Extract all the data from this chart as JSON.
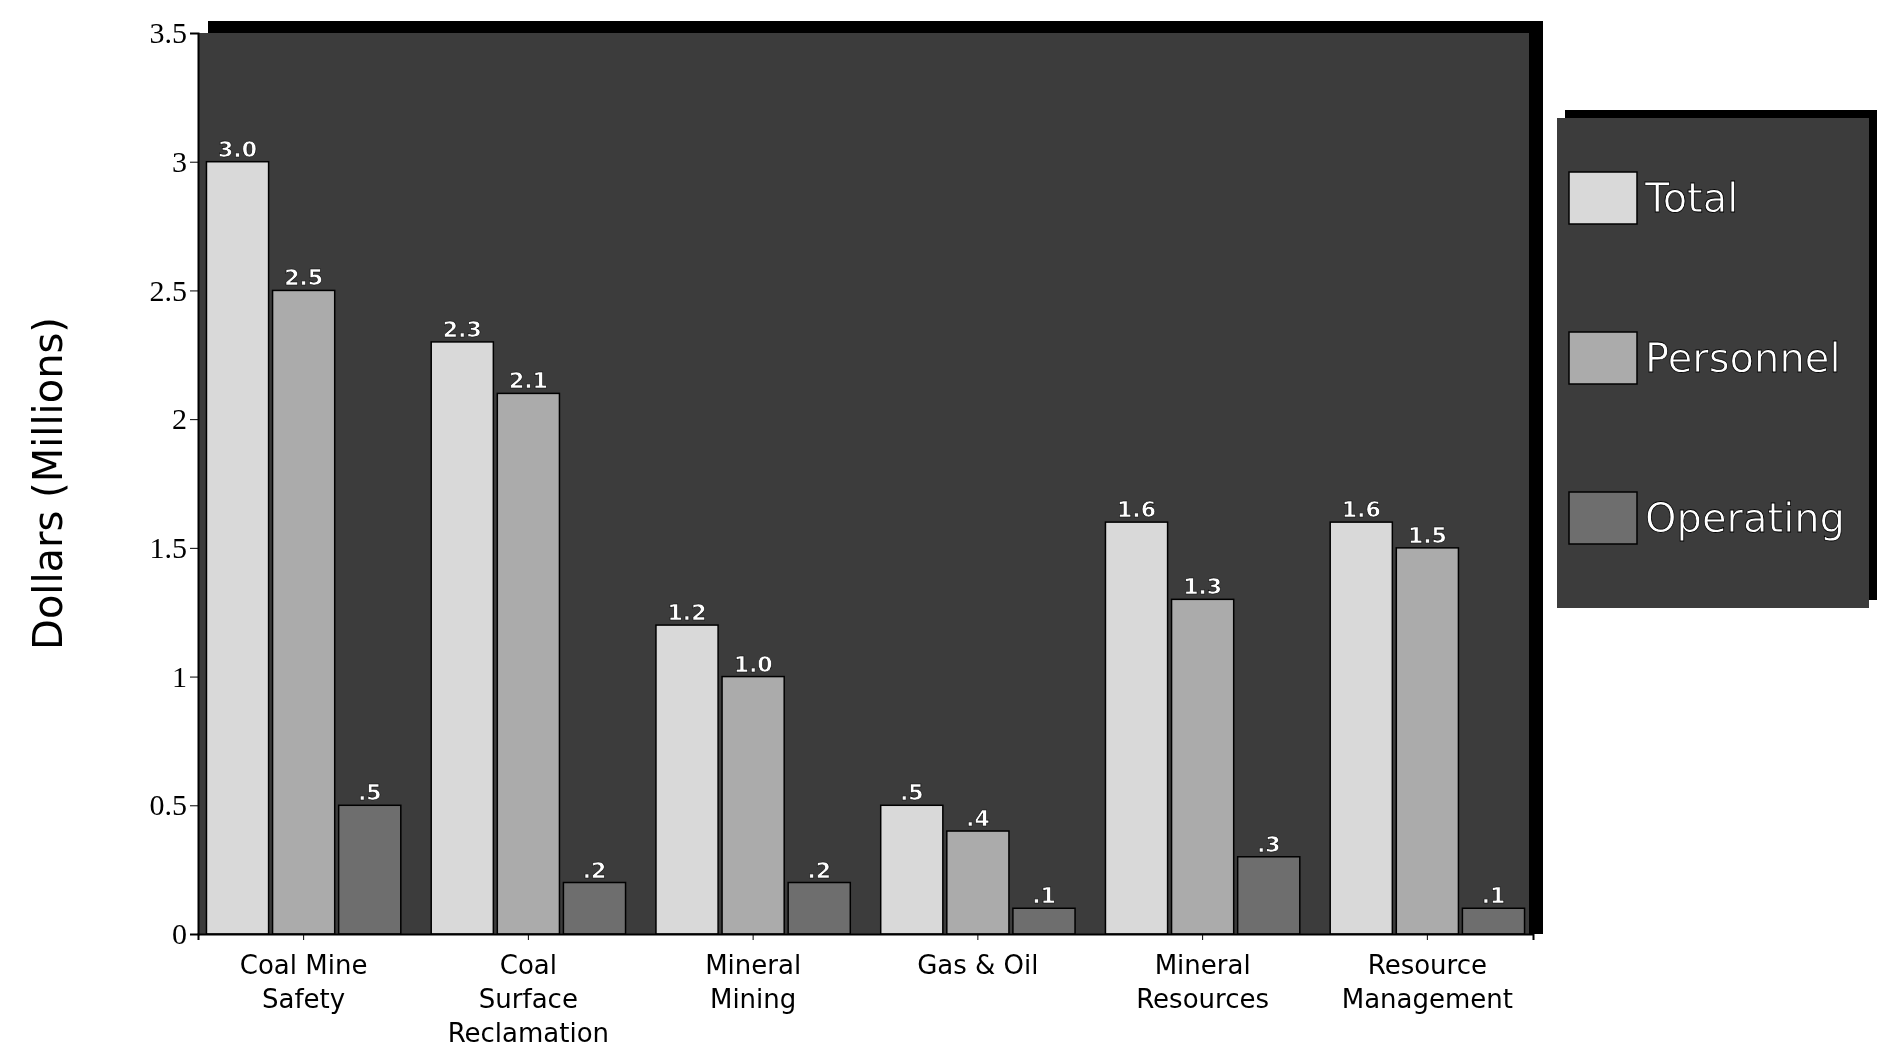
{
  "chart_data": {
    "type": "bar",
    "ylabel": "Dollars (Millions)",
    "categories": [
      "Coal Mine Safety",
      "Coal Surface Reclamation",
      "Mineral Mining",
      "Gas & Oil",
      "Mineral Resources",
      "Resource Management"
    ],
    "series": [
      {
        "name": "Total",
        "color": "#d9d9d9",
        "values": [
          3.0,
          2.3,
          1.2,
          0.5,
          1.6,
          1.6
        ],
        "value_labels": [
          "3.0",
          "2.3",
          "1.2",
          ".5",
          "1.6",
          "1.6"
        ]
      },
      {
        "name": "Personnel",
        "color": "#ababab",
        "values": [
          2.5,
          2.1,
          1.0,
          0.4,
          1.3,
          1.5
        ],
        "value_labels": [
          "2.5",
          "2.1",
          "1.0",
          ".4",
          "1.3",
          "1.5"
        ]
      },
      {
        "name": "Operating",
        "color": "#6e6e6e",
        "values": [
          0.5,
          0.2,
          0.2,
          0.1,
          0.3,
          0.1
        ],
        "value_labels": [
          ".5",
          ".2",
          ".2",
          ".1",
          ".3",
          ".1"
        ]
      }
    ],
    "ylim": [
      0,
      3.5
    ],
    "yticks": [
      0,
      0.5,
      1,
      1.5,
      2,
      2.5,
      3,
      3.5
    ],
    "legend": "right",
    "grid": false
  }
}
